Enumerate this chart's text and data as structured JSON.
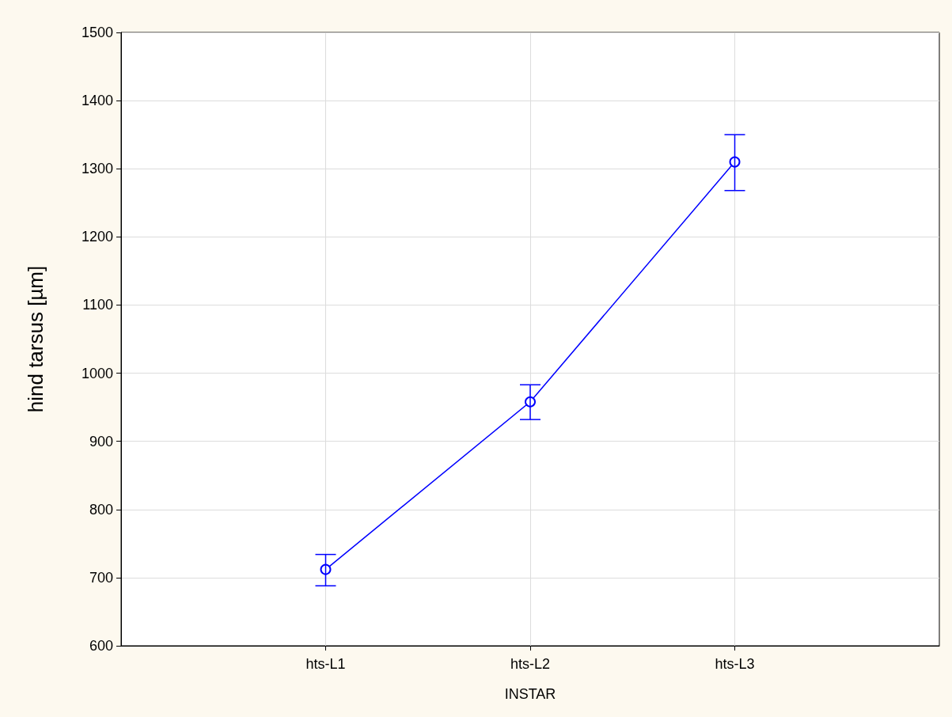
{
  "chart_data": {
    "type": "line",
    "xlabel": "INSTAR",
    "ylabel": "hind tarsus [µm]",
    "categories": [
      "hts-L1",
      "hts-L2",
      "hts-L3"
    ],
    "series": [
      {
        "color": "#0000ff",
        "values": [
          712,
          958,
          1310
        ],
        "errors": [
          [
            688,
            734
          ],
          [
            932,
            983
          ],
          [
            1268,
            1350
          ]
        ]
      }
    ],
    "ylim": [
      600,
      1500
    ],
    "yticks": [
      600,
      700,
      800,
      900,
      1000,
      1100,
      1200,
      1300,
      1400,
      1500
    ],
    "grid": true,
    "marker": "circle",
    "line_style": "solid"
  }
}
